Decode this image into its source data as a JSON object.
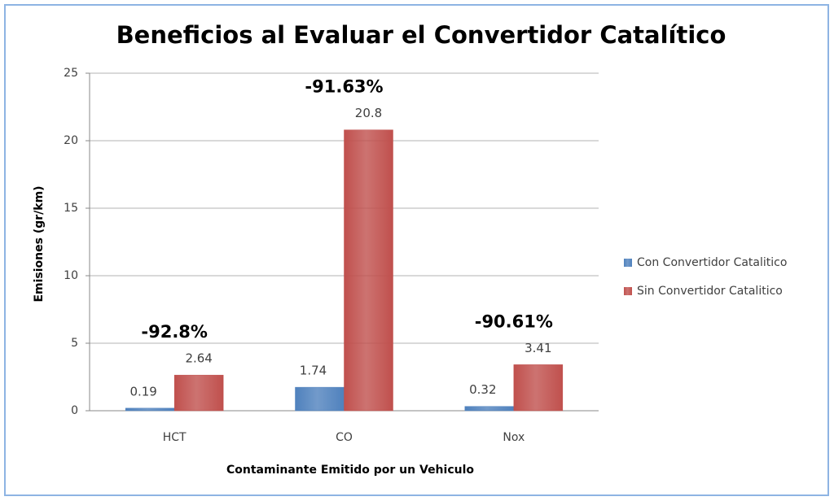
{
  "chart_data": {
    "type": "bar",
    "title": "Beneficios al Evaluar el Convertidor Catalítico",
    "x_label": "Contaminante Emitido por un Vehiculo",
    "y_label": "Emisiones (gr/km)",
    "categories": [
      "HCT",
      "CO",
      "Nox"
    ],
    "series": [
      {
        "name": "Con Convertidor Catalitico",
        "color": "#4f81bd",
        "values": [
          0.19,
          1.74,
          0.32
        ]
      },
      {
        "name": "Sin Convertidor Catalitico",
        "color": "#c0504d",
        "values": [
          2.64,
          20.8,
          3.41
        ]
      }
    ],
    "annotations": [
      "-92.8%",
      "-91.63%",
      "-90.61%"
    ],
    "ylim": [
      0,
      25
    ],
    "yticks": [
      0,
      5,
      10,
      15,
      20,
      25
    ],
    "grid": true,
    "legend": "right"
  }
}
